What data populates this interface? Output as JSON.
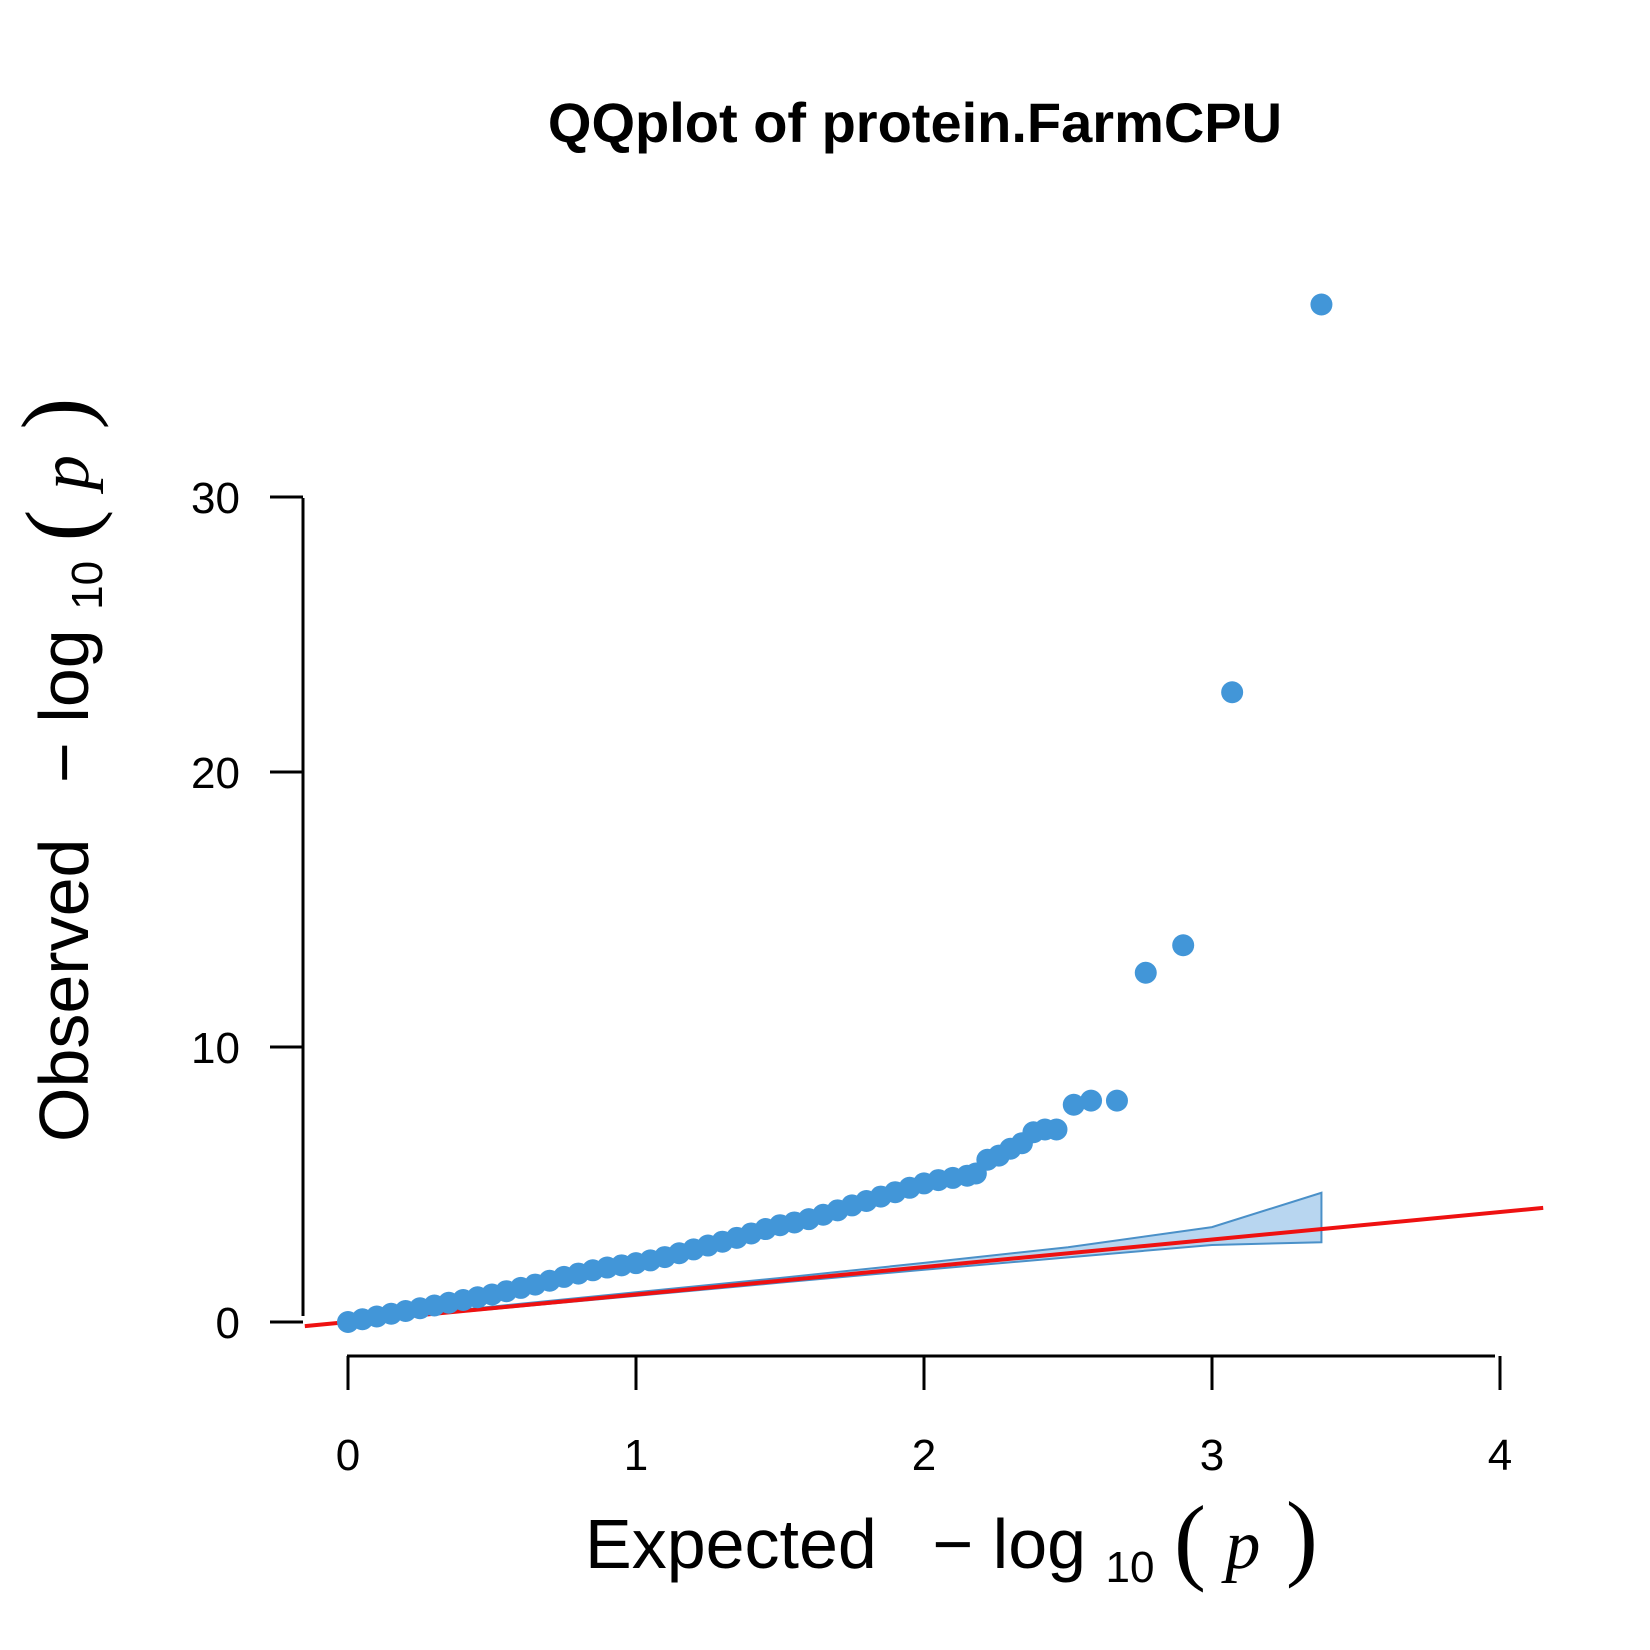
{
  "chart_data": {
    "type": "scatter",
    "title": "QQplot of protein.FarmCPU",
    "xlabel": {
      "word": "Expected",
      "minus": "−",
      "log": "log",
      "base": "10",
      "open_paren": "(",
      "var": "p",
      "close_paren": ")"
    },
    "ylabel": {
      "word": "Observed",
      "minus": "−",
      "log": "log",
      "base": "10",
      "open_paren": "(",
      "var": "p",
      "close_paren": ")"
    },
    "xlim": [
      0,
      4
    ],
    "ylim": [
      0,
      30
    ],
    "x_ticks": [
      "0",
      "1",
      "2",
      "3",
      "4"
    ],
    "y_ticks": [
      "0",
      "10",
      "20",
      "30"
    ],
    "grid": false,
    "colors": {
      "points": "#4296d8",
      "band_fill": "#b8d6f0",
      "band_stroke": "#4a90c8",
      "reference_line": "#ee1111"
    },
    "reference_line": {
      "slope": 1,
      "intercept": 0
    },
    "confidence_band": {
      "x": [
        0,
        0.5,
        1.0,
        1.5,
        2.0,
        2.5,
        3.0,
        3.38
      ],
      "upper": [
        0.05,
        0.56,
        1.08,
        1.6,
        2.15,
        2.72,
        3.45,
        4.7
      ],
      "lower": [
        0.0,
        0.47,
        0.95,
        1.43,
        1.9,
        2.35,
        2.8,
        2.9
      ]
    },
    "curve_points": [
      [
        0.0,
        0.0
      ],
      [
        0.05,
        0.1
      ],
      [
        0.1,
        0.2
      ],
      [
        0.15,
        0.3
      ],
      [
        0.2,
        0.4
      ],
      [
        0.25,
        0.5
      ],
      [
        0.3,
        0.6
      ],
      [
        0.35,
        0.7
      ],
      [
        0.4,
        0.8
      ],
      [
        0.45,
        0.9
      ],
      [
        0.5,
        1.0
      ],
      [
        0.55,
        1.12
      ],
      [
        0.6,
        1.24
      ],
      [
        0.65,
        1.36
      ],
      [
        0.7,
        1.5
      ],
      [
        0.75,
        1.64
      ],
      [
        0.8,
        1.76
      ],
      [
        0.85,
        1.88
      ],
      [
        0.9,
        1.98
      ],
      [
        0.95,
        2.06
      ],
      [
        1.0,
        2.14
      ],
      [
        1.05,
        2.24
      ],
      [
        1.1,
        2.36
      ],
      [
        1.15,
        2.5
      ],
      [
        1.2,
        2.64
      ],
      [
        1.25,
        2.78
      ],
      [
        1.3,
        2.92
      ],
      [
        1.35,
        3.06
      ],
      [
        1.4,
        3.22
      ],
      [
        1.45,
        3.38
      ],
      [
        1.5,
        3.52
      ],
      [
        1.55,
        3.62
      ],
      [
        1.6,
        3.74
      ],
      [
        1.65,
        3.9
      ],
      [
        1.7,
        4.06
      ],
      [
        1.75,
        4.24
      ],
      [
        1.8,
        4.4
      ],
      [
        1.85,
        4.56
      ],
      [
        1.9,
        4.72
      ],
      [
        1.95,
        4.88
      ],
      [
        2.0,
        5.04
      ],
      [
        2.05,
        5.16
      ],
      [
        2.1,
        5.24
      ],
      [
        2.15,
        5.32
      ],
      [
        2.18,
        5.4
      ]
    ],
    "upper_points": [
      [
        2.22,
        5.9
      ],
      [
        2.26,
        6.05
      ],
      [
        2.3,
        6.3
      ],
      [
        2.34,
        6.5
      ],
      [
        2.38,
        6.9
      ],
      [
        2.42,
        7.0
      ],
      [
        2.46,
        7.0
      ],
      [
        2.52,
        7.9
      ],
      [
        2.58,
        8.05
      ],
      [
        2.67,
        8.05
      ],
      [
        2.77,
        12.7
      ],
      [
        2.9,
        13.7
      ],
      [
        3.07,
        22.9
      ],
      [
        3.38,
        37.0
      ]
    ]
  }
}
